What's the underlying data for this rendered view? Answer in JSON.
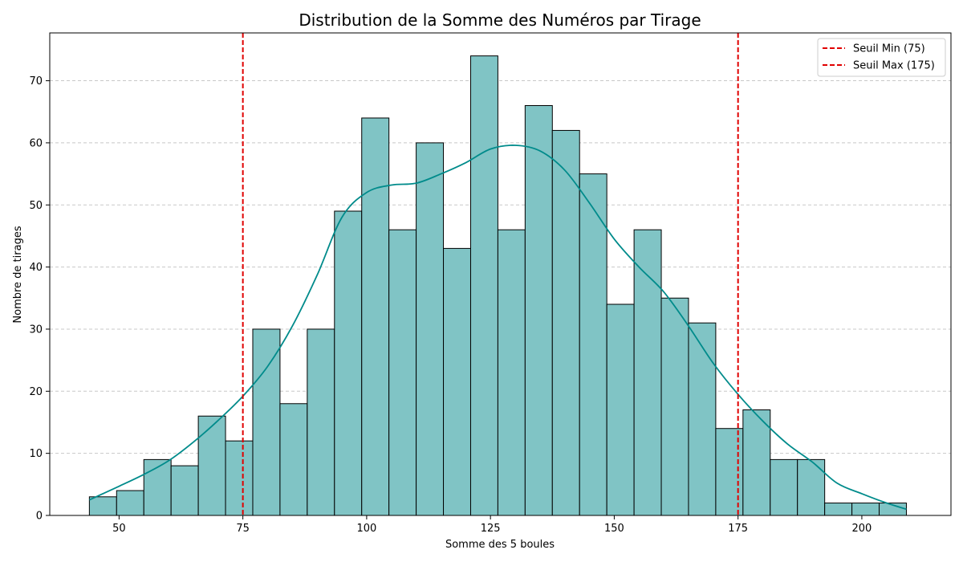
{
  "chart_data": {
    "type": "bar",
    "title": "Distribution de la Somme des Numéros par Tirage",
    "xlabel": "Somme des 5 boules",
    "ylabel": "Nombre de tirages",
    "xlim": [
      36,
      218
    ],
    "ylim": [
      0,
      77.7
    ],
    "xticks": [
      50,
      75,
      100,
      125,
      150,
      175,
      200
    ],
    "yticks": [
      0,
      10,
      20,
      30,
      40,
      50,
      60,
      70
    ],
    "grid": "y-dashed",
    "bin_start": 44,
    "bin_width": 5.5,
    "counts": [
      3,
      4,
      9,
      8,
      16,
      12,
      30,
      18,
      30,
      49,
      64,
      46,
      60,
      43,
      74,
      46,
      66,
      62,
      55,
      34,
      46,
      35,
      31,
      14,
      17,
      9,
      9,
      2,
      2,
      2
    ],
    "bar_color": "#80c4c5",
    "bar_edge": "#000000",
    "kde": {
      "name": "",
      "color": "#008b8b",
      "x": [
        44,
        50,
        55,
        60,
        65,
        70,
        75,
        80,
        85,
        90,
        95,
        100,
        105,
        110,
        115,
        120,
        125,
        130,
        135,
        140,
        145,
        150,
        155,
        160,
        165,
        170,
        175,
        180,
        185,
        190,
        195,
        200,
        205,
        209
      ],
      "y": [
        2.5,
        4.7,
        6.6,
        8.8,
        11.8,
        15.3,
        19.2,
        24.0,
        30.5,
        38.7,
        48.0,
        52.0,
        53.2,
        53.5,
        55.0,
        56.8,
        59.0,
        59.6,
        58.7,
        55.6,
        50.3,
        44.5,
        40.0,
        36.0,
        30.5,
        24.5,
        19.5,
        15.2,
        11.5,
        8.6,
        5.2,
        3.5,
        2.0,
        1.0
      ]
    },
    "vlines": [
      {
        "name": "Seuil Min (75)",
        "x": 75,
        "color": "#e00000"
      },
      {
        "name": "Seuil Max (175)",
        "x": 175,
        "color": "#e00000"
      }
    ],
    "legend": "top-right"
  }
}
